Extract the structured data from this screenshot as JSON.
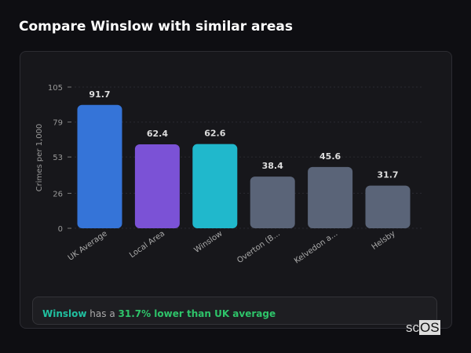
{
  "title": "Compare Winslow with similar areas",
  "chart_data": {
    "type": "bar",
    "ylabel": "Crimes per 1,000",
    "ylim": [
      0,
      105
    ],
    "yticks": [
      0,
      26,
      53,
      79,
      105
    ],
    "grid": true,
    "categories": [
      "UK Average",
      "Local Area",
      "Winslow",
      "Overton (B...",
      "Kelvedon a...",
      "Helsby"
    ],
    "values": [
      91.7,
      62.4,
      62.6,
      38.4,
      45.6,
      31.7
    ],
    "colors": [
      "#3574d8",
      "#7b52d6",
      "#20b8cc",
      "#5a6478",
      "#5a6478",
      "#5a6478"
    ]
  },
  "note": {
    "area": "Winslow",
    "middle": " has a ",
    "highlight": "31.7% lower than UK average"
  },
  "logo": "scOS"
}
